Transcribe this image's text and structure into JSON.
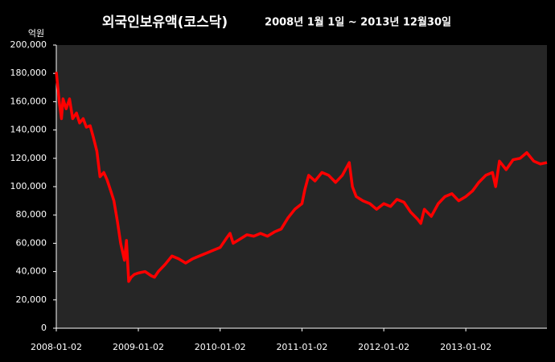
{
  "chart_data": {
    "type": "line",
    "title": "외국인보유액(코스닥)",
    "subtitle": "2008년 1월 1일 ~ 2013년 12월30일",
    "y_label": "억원",
    "xlim": [
      "2008-01-02",
      "2013-12-30"
    ],
    "xticks": [
      "2008-01-02",
      "2009-01-02",
      "2010-01-02",
      "2011-01-02",
      "2012-01-02",
      "2013-01-02"
    ],
    "ylim": [
      0,
      200000
    ],
    "yticks": [
      0,
      {
        "value": 20000,
        "label": "20,000"
      },
      {
        "value": 40000,
        "label": "40,000"
      },
      {
        "value": 60000,
        "label": "60,000"
      },
      {
        "value": 80000,
        "label": "80,000"
      },
      {
        "value": 100000,
        "label": "100,000"
      },
      {
        "value": 120000,
        "label": "120,000"
      },
      {
        "value": 140000,
        "label": "140,000"
      },
      {
        "value": 160000,
        "label": "160,000"
      },
      {
        "value": 180000,
        "label": "180,000"
      },
      {
        "value": 200000,
        "label": "200,000"
      }
    ],
    "grid": false,
    "x": [
      "2008-01-02",
      "2008-01-15",
      "2008-01-25",
      "2008-02-01",
      "2008-02-15",
      "2008-03-01",
      "2008-03-15",
      "2008-04-01",
      "2008-04-15",
      "2008-05-01",
      "2008-05-15",
      "2008-06-01",
      "2008-06-15",
      "2008-07-01",
      "2008-07-15",
      "2008-08-01",
      "2008-08-15",
      "2008-09-01",
      "2008-09-15",
      "2008-10-01",
      "2008-10-15",
      "2008-11-01",
      "2008-11-10",
      "2008-11-20",
      "2008-12-01",
      "2008-12-15",
      "2009-01-02",
      "2009-02-01",
      "2009-03-01",
      "2009-03-15",
      "2009-04-01",
      "2009-05-01",
      "2009-06-01",
      "2009-07-01",
      "2009-08-01",
      "2009-09-01",
      "2009-10-01",
      "2009-11-01",
      "2009-12-01",
      "2010-01-02",
      "2010-02-01",
      "2010-02-15",
      "2010-03-01",
      "2010-04-01",
      "2010-05-01",
      "2010-06-01",
      "2010-07-01",
      "2010-08-01",
      "2010-09-01",
      "2010-10-01",
      "2010-11-01",
      "2010-12-01",
      "2011-01-02",
      "2011-01-15",
      "2011-02-01",
      "2011-03-01",
      "2011-04-01",
      "2011-05-01",
      "2011-06-01",
      "2011-07-01",
      "2011-08-01",
      "2011-08-15",
      "2011-09-01",
      "2011-10-01",
      "2011-11-01",
      "2011-12-01",
      "2012-01-02",
      "2012-02-01",
      "2012-03-01",
      "2012-04-01",
      "2012-05-01",
      "2012-06-01",
      "2012-06-15",
      "2012-07-01",
      "2012-08-01",
      "2012-09-01",
      "2012-10-01",
      "2012-11-01",
      "2012-12-01",
      "2013-01-02",
      "2013-02-01",
      "2013-03-01",
      "2013-04-01",
      "2013-05-01",
      "2013-05-15",
      "2013-06-01",
      "2013-07-01",
      "2013-08-01",
      "2013-09-01",
      "2013-10-01",
      "2013-11-01",
      "2013-12-01",
      "2013-12-30"
    ],
    "series": [
      {
        "name": "외국인보유액",
        "color": "#ff0000",
        "values": [
          181000,
          160000,
          148000,
          162000,
          155000,
          162000,
          148000,
          152000,
          145000,
          148000,
          142000,
          143000,
          135000,
          125000,
          107000,
          110000,
          105000,
          97000,
          90000,
          75000,
          60000,
          48000,
          62000,
          33000,
          36000,
          38000,
          39000,
          40000,
          37000,
          36000,
          40000,
          45000,
          51000,
          49000,
          46000,
          49000,
          51000,
          53000,
          55000,
          57000,
          64000,
          67000,
          60000,
          63000,
          66000,
          65000,
          67000,
          65000,
          68000,
          70000,
          78000,
          84000,
          88000,
          98000,
          108000,
          104000,
          110000,
          108000,
          103000,
          108000,
          117000,
          100000,
          93000,
          90000,
          88000,
          84000,
          88000,
          86000,
          91000,
          89000,
          82000,
          77000,
          74000,
          84000,
          79000,
          88000,
          93000,
          95000,
          90000,
          93000,
          97000,
          103000,
          108000,
          110000,
          100000,
          118000,
          112000,
          119000,
          120000,
          124000,
          118000,
          116000,
          117000
        ]
      }
    ]
  }
}
